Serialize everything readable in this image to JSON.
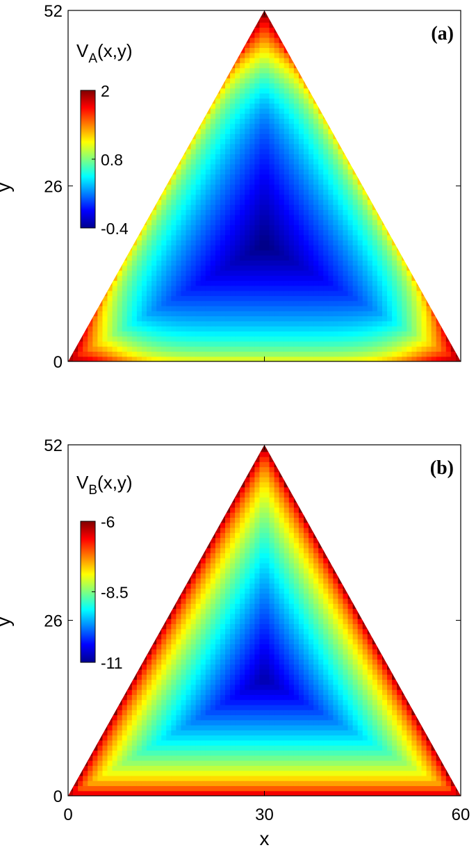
{
  "chart_data": [
    {
      "type": "heatmap",
      "panel_label": "(a)",
      "field_title_main": "V",
      "field_title_sub": "A",
      "field_title_tail": "(x,y)",
      "domain": "equilateral triangle with vertices (0,0), (60,0), (30,52)",
      "xlim": [
        0,
        60
      ],
      "ylim": [
        0,
        52
      ],
      "yticks": [
        "0",
        "26",
        "52"
      ],
      "ylabel": "y",
      "colormap": "jet",
      "clim": [
        -0.4,
        2
      ],
      "colorbar_ticks": [
        "2",
        "0.8",
        "-0.4"
      ],
      "description_values": {
        "interior_minimum": -0.4,
        "interior_minimum_location": [
          30,
          17
        ],
        "edge_value": 1.2,
        "corner_value": 2
      }
    },
    {
      "type": "heatmap",
      "panel_label": "(b)",
      "field_title_main": "V",
      "field_title_sub": "B",
      "field_title_tail": "(x,y)",
      "domain": "equilateral triangle with vertices (0,0), (60,0), (30,52)",
      "xlim": [
        0,
        60
      ],
      "ylim": [
        0,
        52
      ],
      "xticks": [
        "0",
        "30",
        "60"
      ],
      "yticks": [
        "0",
        "26",
        "52"
      ],
      "xlabel": "x",
      "ylabel": "y",
      "colormap": "jet",
      "clim": [
        -11,
        -6
      ],
      "colorbar_ticks": [
        "-6",
        "-8.5",
        "-11"
      ],
      "description_values": {
        "interior_minimum": -10.8,
        "interior_minimum_location": [
          30,
          17
        ],
        "edge_value": -6,
        "corner_value": -6
      }
    }
  ]
}
